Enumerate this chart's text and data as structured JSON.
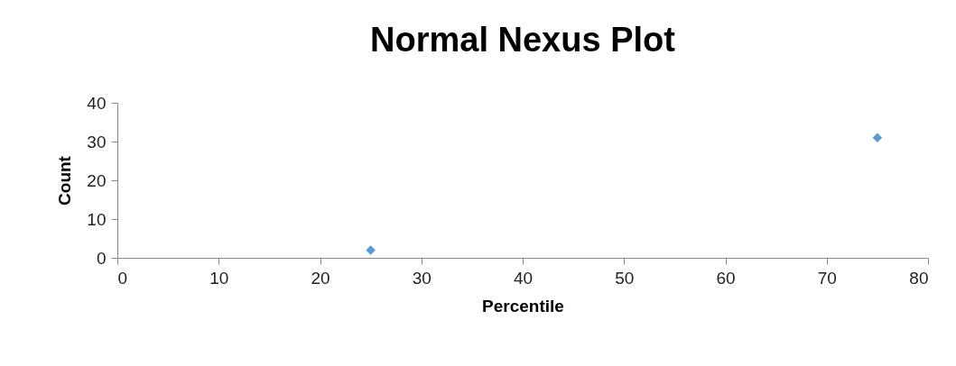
{
  "chart_data": {
    "type": "scatter",
    "title": "Normal Nexus Plot",
    "xlabel": "Percentile",
    "ylabel": "Count",
    "x": [
      25,
      75
    ],
    "series": [
      {
        "color": "#5b9bd5",
        "values": [
          2,
          31
        ]
      }
    ],
    "xlim": [
      0,
      80
    ],
    "xticks": [
      0,
      10,
      20,
      30,
      40,
      50,
      60,
      70,
      80
    ],
    "ylim": [
      0,
      40
    ],
    "yticks": [
      0,
      10,
      20,
      30,
      40
    ],
    "grid": false,
    "legend": false,
    "marker": "diamond"
  }
}
